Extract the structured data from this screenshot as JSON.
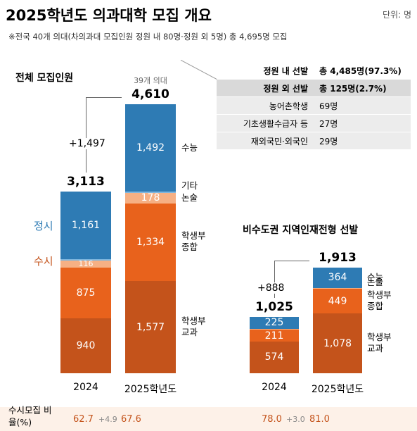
{
  "title": "2025학년도 의과대학 모집 개요",
  "unit": "단위: 명",
  "note": "※전국 40개 의대(차의과대 모집인원 정원 내 80명·정원 외 5명) 총 4,695명 모집",
  "table": {
    "rows": [
      [
        "정원 내 선발",
        "총 4,485명(97.3%)"
      ],
      [
        "정원 외 선발",
        "총 125명(2.7%)"
      ],
      [
        "농어촌학생",
        "69명"
      ],
      [
        "기초생활수급자 등",
        "27명"
      ],
      [
        "재외국민·외국인",
        "29명"
      ]
    ]
  },
  "chart_data": [
    {
      "type": "stacked_bar",
      "title": "전체 모집인원",
      "categories": [
        "2024",
        "2025학년도"
      ],
      "series": [
        {
          "name": "학생부 교과",
          "color": "#c4531b",
          "values": [
            940,
            1577
          ],
          "value_labels": [
            "940",
            "1,577"
          ]
        },
        {
          "name": "학생부 종합",
          "color": "#e8621c",
          "values": [
            875,
            1334
          ],
          "value_labels": [
            "875",
            "1,334"
          ]
        },
        {
          "name": "논술",
          "color": "#f6b084",
          "values": [
            116,
            178
          ]
        },
        {
          "name": "기타",
          "color": "#7fb6de",
          "values": [
            21,
            29
          ]
        },
        {
          "name": "수능",
          "color": "#2e7bb4",
          "values": [
            1161,
            1492
          ],
          "value_labels": [
            "1,161",
            "1,492"
          ]
        }
      ],
      "totals": [
        3113,
        4610
      ],
      "total_labels": [
        "3,113",
        "4,610"
      ],
      "change": "+1,497",
      "annotation": "39개 의대",
      "group_labels": [
        "정시",
        "수시"
      ]
    },
    {
      "type": "stacked_bar",
      "title": "비수도권 지역인재전형 선발",
      "categories": [
        "2024",
        "2025학년도"
      ],
      "series": [
        {
          "name": "학생부 교과",
          "color": "#c4531b",
          "values": [
            574,
            1078
          ],
          "value_labels": [
            "574",
            "1,078"
          ]
        },
        {
          "name": "학생부 종합",
          "color": "#e8621c",
          "values": [
            211,
            449
          ]
        },
        {
          "name": "논술",
          "color": "#f6b084",
          "values": [
            15,
            22
          ]
        },
        {
          "name": "수능",
          "color": "#2e7bb4",
          "values": [
            225,
            364
          ]
        }
      ],
      "totals": [
        1025,
        1913
      ],
      "total_labels": [
        "1,025",
        "1,913"
      ],
      "change": "+888"
    }
  ],
  "ratio": {
    "label": "수시모집 비율(%)",
    "values": [
      62.7,
      67.6,
      78.0,
      81.0
    ],
    "value_labels": [
      "62.7",
      "67.6",
      "78.0",
      "81.0"
    ],
    "changes": [
      "+4.9",
      "+3.0"
    ]
  }
}
